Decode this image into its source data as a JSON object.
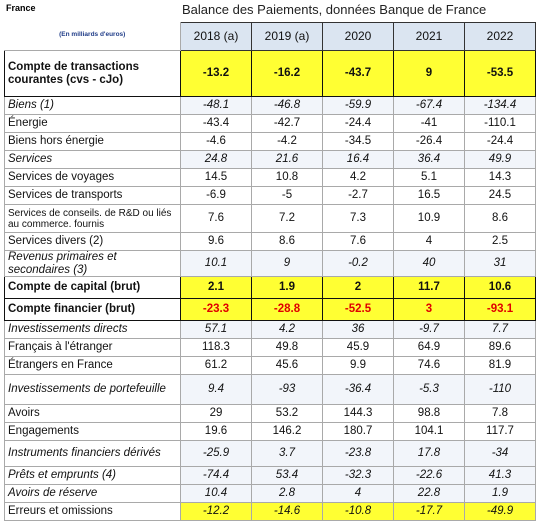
{
  "header": {
    "country": "France",
    "title": "Balance des Paiements, données Banque de France",
    "unit": "(En milliards d'euros)",
    "columns": [
      "2018 (a)",
      "2019 (a)",
      "2020",
      "2021",
      "2022"
    ]
  },
  "table": {
    "rows": [
      {
        "label": "Compte de transactions courantes (cvs - cJo)",
        "values": [
          -13.2,
          -16.2,
          -43.7,
          9,
          -53.5
        ]
      },
      {
        "label": "Biens (1)",
        "values": [
          -48.1,
          -46.8,
          -59.9,
          -67.4,
          -134.4
        ]
      },
      {
        "label": "Énergie",
        "values": [
          -43.4,
          -42.7,
          -24.4,
          -41,
          -110.1
        ]
      },
      {
        "label": "Biens hors énergie",
        "values": [
          -4.6,
          -4.2,
          -34.5,
          -26.4,
          -24.4
        ]
      },
      {
        "label": "Services",
        "values": [
          24.8,
          21.6,
          16.4,
          36.4,
          49.9
        ]
      },
      {
        "label": "Services de voyages",
        "values": [
          14.5,
          10.8,
          4.2,
          5.1,
          14.3
        ]
      },
      {
        "label": "Services de transports",
        "values": [
          -6.9,
          -5,
          -2.7,
          16.5,
          24.5
        ]
      },
      {
        "label": "Services de conseils. de R&D ou liés au commerce. fournis",
        "values": [
          7.6,
          7.2,
          7.3,
          10.9,
          8.6
        ]
      },
      {
        "label": "Services divers (2)",
        "values": [
          9.6,
          8.6,
          7.6,
          4,
          2.5
        ]
      },
      {
        "label": "Revenus primaires et secondaires (3)",
        "values": [
          10.1,
          9,
          -0.2,
          40,
          31
        ]
      },
      {
        "label": "Compte de capital (brut)",
        "values": [
          2.1,
          1.9,
          2,
          11.7,
          10.6
        ]
      },
      {
        "label": "Compte financier (brut)",
        "values": [
          -23.3,
          -28.8,
          -52.5,
          3,
          -93.1
        ]
      },
      {
        "label": "Investissements directs",
        "values": [
          57.1,
          4.2,
          36,
          -9.7,
          7.7
        ]
      },
      {
        "label": "Français à l'étranger",
        "values": [
          118.3,
          49.8,
          45.9,
          64.9,
          89.6
        ]
      },
      {
        "label": "Étrangers en France",
        "values": [
          61.2,
          45.6,
          9.9,
          74.6,
          81.9
        ]
      },
      {
        "label": "Investissements de portefeuille",
        "values": [
          9.4,
          -93,
          -36.4,
          -5.3,
          -110
        ]
      },
      {
        "label": "Avoirs",
        "values": [
          29,
          53.2,
          144.3,
          98.8,
          7.8
        ]
      },
      {
        "label": "Engagements",
        "values": [
          19.6,
          146.2,
          180.7,
          104.1,
          117.7
        ]
      },
      {
        "label": "Instruments financiers dérivés",
        "values": [
          -25.9,
          3.7,
          -23.8,
          17.8,
          -34
        ]
      },
      {
        "label": "Prêts et emprunts (4)",
        "values": [
          -74.4,
          53.4,
          -32.3,
          -22.6,
          41.3
        ]
      },
      {
        "label": "Avoirs de réserve",
        "values": [
          10.4,
          2.8,
          4,
          22.8,
          1.9
        ]
      },
      {
        "label": "Erreurs et omissions",
        "values": [
          -12.2,
          -14.6,
          -10.8,
          -17.7,
          -49.9
        ]
      }
    ]
  }
}
